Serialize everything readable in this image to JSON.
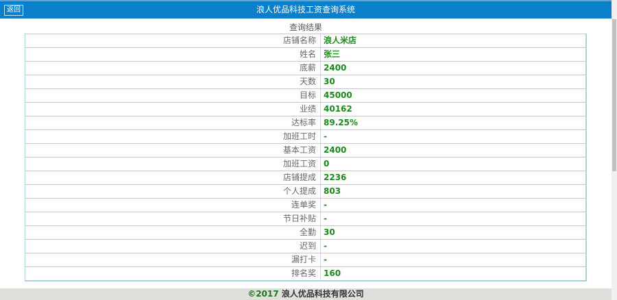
{
  "header": {
    "back_label": "返回",
    "title": "浪人优品科技工资查询系统"
  },
  "caption": "查询结果",
  "rows": [
    {
      "label": "店铺名称",
      "value": "浪人米店"
    },
    {
      "label": "姓名",
      "value": "张三"
    },
    {
      "label": "底薪",
      "value": "2400"
    },
    {
      "label": "天数",
      "value": "30"
    },
    {
      "label": "目标",
      "value": "45000"
    },
    {
      "label": "业绩",
      "value": "40162"
    },
    {
      "label": "达标率",
      "value": "89.25%"
    },
    {
      "label": "加班工时",
      "value": "-"
    },
    {
      "label": "基本工资",
      "value": "2400"
    },
    {
      "label": "加班工资",
      "value": "0"
    },
    {
      "label": "店铺提成",
      "value": "2236"
    },
    {
      "label": "个人提成",
      "value": "803"
    },
    {
      "label": "连单奖",
      "value": "-"
    },
    {
      "label": "节日补贴",
      "value": "-"
    },
    {
      "label": "全勤",
      "value": "30"
    },
    {
      "label": "迟到",
      "value": "-"
    },
    {
      "label": "漏打卡",
      "value": "-"
    },
    {
      "label": "排名奖",
      "value": "160"
    }
  ],
  "footer": {
    "copyright": "©2017",
    "company": "浪人优品科技有限公司"
  }
}
